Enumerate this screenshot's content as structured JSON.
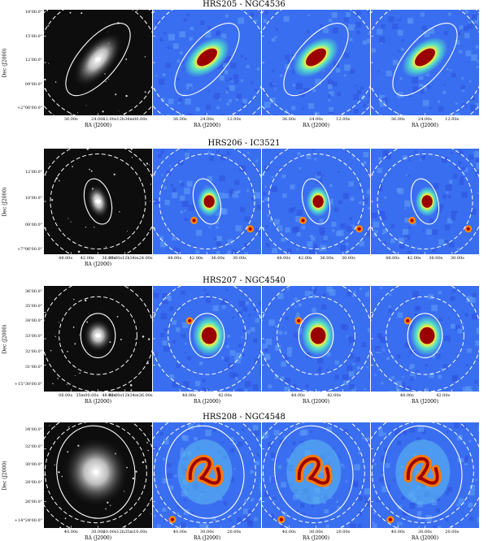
{
  "figure": {
    "rows": [
      {
        "title": "HRS205 - NGC4536",
        "ylabel": "Dec (J2000)",
        "yticks": [
          "18'00.0\"",
          "15'00.0\"",
          "12'00.0\"",
          "09'00.0\"",
          "+2°06'00.0\""
        ],
        "panels": [
          {
            "map": "optical",
            "xticks": [
              "36.00s",
              "24.00s",
              "12.00s12h34m00.00s"
            ],
            "xlabel": "RA (J2000)"
          },
          {
            "map": "far-ir",
            "xticks": [
              "36.00s",
              "24.00s",
              "12.00s"
            ],
            "xlabel": "RA (J2000)"
          },
          {
            "map": "far-ir",
            "xticks": [
              "36.00s",
              "24.00s",
              "12.00s"
            ],
            "xlabel": "RA (J2000)"
          },
          {
            "map": "far-ir",
            "xticks": [
              "36.00s",
              "24.00s",
              "12.00s"
            ],
            "xlabel": "RA (J2000)"
          }
        ]
      },
      {
        "title": "HRS206 - IC3521",
        "ylabel": "Dec (J2000)",
        "yticks": [
          "12'00.0\"",
          "10'00.0\"",
          "08'00.0\"",
          "+7°06'00.0\""
        ],
        "panels": [
          {
            "map": "optical",
            "xticks": [
              "48.00s",
              "42.00s",
              "36.00s",
              "30.00s12h34m24.00s"
            ],
            "xlabel": "RA (J2000)"
          },
          {
            "map": "far-ir",
            "xticks": [
              "48.00s",
              "42.00s",
              "36.00s",
              "30.00s"
            ],
            "xlabel": ""
          },
          {
            "map": "far-ir",
            "xticks": [
              "48.00s",
              "42.00s",
              "36.00s",
              "30.00s"
            ],
            "xlabel": ""
          },
          {
            "map": "far-ir",
            "xticks": [
              "48.00s",
              "42.00s",
              "36.00s",
              "30.00s"
            ],
            "xlabel": ""
          }
        ]
      },
      {
        "title": "HRS207 - NGC4540",
        "ylabel": "Dec (J2000)",
        "yticks": [
          "36'00.0\"",
          "35'00.0\"",
          "34'00.0\"",
          "33'00.0\"",
          "32'00.0\"",
          "31'00.0\"",
          "+15°30'00.0\""
        ],
        "panels": [
          {
            "map": "optical",
            "xticks": [
              "06.00s",
              "35m00.00s",
              "48.00s",
              "42.00s12h34m36.00s"
            ],
            "xlabel": "RA (J2000)"
          },
          {
            "map": "far-ir",
            "xticks": [
              "48.00s",
              "42.00s"
            ],
            "xlabel": "RA (J2000)"
          },
          {
            "map": "far-ir",
            "xticks": [
              "48.00s",
              "42.00s"
            ],
            "xlabel": "RA (J2000)"
          },
          {
            "map": "far-ir",
            "xticks": [
              "48.00s",
              "42.00s"
            ],
            "xlabel": "RA (J2000)"
          }
        ]
      },
      {
        "title": "HRS208 - NGC4548",
        "ylabel": "Dec (J2000)",
        "yticks": [
          "34'00.0\"",
          "32'00.0\"",
          "30'00.0\"",
          "28'00.0\"",
          "26'00.0\"",
          "+14°24'00.0\""
        ],
        "panels": [
          {
            "map": "optical",
            "xticks": [
              "40.00s",
              "30.00s",
              "20.00s12h35m10.00s"
            ],
            "xlabel": "RA (J2000)"
          },
          {
            "map": "far-ir",
            "xticks": [
              "40.00s",
              "30.00s",
              "20.00s"
            ],
            "xlabel": "RA (J2000)"
          },
          {
            "map": "far-ir",
            "xticks": [
              "40.00s",
              "30.00s",
              "20.00s"
            ],
            "xlabel": "RA (J2000)"
          },
          {
            "map": "far-ir",
            "xticks": [
              "40.00s",
              "30.00s",
              "20.00s"
            ],
            "xlabel": "RA (J2000)"
          }
        ]
      }
    ]
  },
  "colors": {
    "optical_background": "#0d0d0d",
    "map_background": "#3a6ef0",
    "map_core": "#9a0000",
    "ellipse": "#ffffff"
  }
}
